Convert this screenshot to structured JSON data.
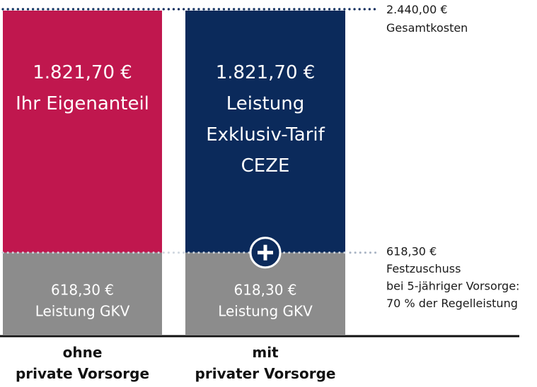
{
  "chart_data": {
    "type": "bar",
    "stacked": true,
    "categories": [
      "ohne private Vorsorge",
      "mit privater Vorsorge"
    ],
    "category_lines": [
      [
        "ohne",
        "private Vorsorge"
      ],
      [
        "mit",
        "privater Vorsorge"
      ]
    ],
    "series": [
      {
        "values": [
          618.3,
          618.3
        ],
        "color": "#8c8c8c",
        "labels": [
          [
            "618,30 €",
            "Leistung GKV"
          ],
          [
            "618,30 €",
            "Leistung GKV"
          ]
        ]
      },
      {
        "values": [
          1821.7,
          1821.7
        ],
        "colors": [
          "#c0174e",
          "#0b2a5b"
        ],
        "labels": [
          [
            "1.821,70 €",
            "Ihr Eigenanteil"
          ],
          [
            "1.821,70 €",
            "Leistung",
            "Exklusiv-Tarif",
            "CEZE"
          ]
        ]
      }
    ],
    "ylim": [
      0,
      2440
    ],
    "reference_lines": [
      {
        "value": 2440.0,
        "label_lines": [
          "2.440,00 €",
          "Gesamtkosten"
        ]
      },
      {
        "value": 618.3,
        "label_lines": [
          "618,30 €",
          "Festzuschuss",
          "bei 5-jähriger Vorsorge:",
          "70 % der Regelleistung"
        ]
      }
    ],
    "marker": {
      "symbol": "+",
      "icon": "plus-circle-icon",
      "color": "#0b2a5b"
    },
    "colors": {
      "gkv": "#8c8c8c",
      "eigenanteil": "#c0174e",
      "ceze": "#0b2a5b",
      "dotted_line": "#0b2a5b",
      "dotted_line_light": "#a9b4c4",
      "baseline": "#111111"
    }
  }
}
